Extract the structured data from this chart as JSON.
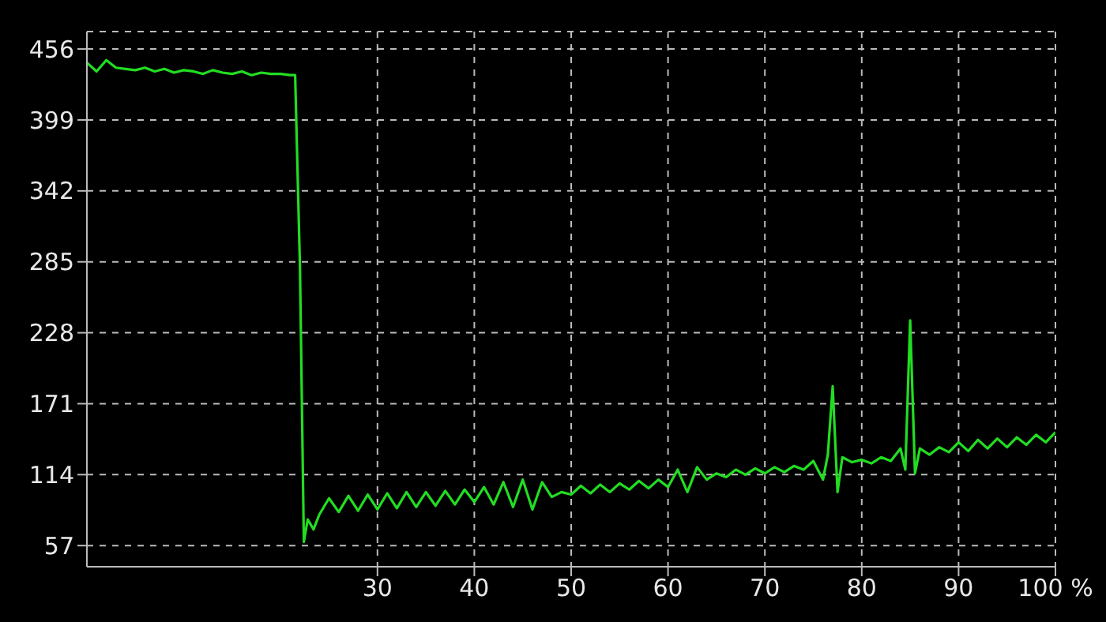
{
  "chart_data": {
    "type": "line",
    "x": [
      0,
      1,
      2,
      3,
      4,
      5,
      6,
      7,
      8,
      9,
      10,
      11,
      12,
      13,
      14,
      15,
      16,
      17,
      18,
      19,
      20,
      21,
      21.5,
      22,
      22.4,
      22.8,
      23.4,
      24,
      25,
      26,
      27,
      28,
      29,
      30,
      31,
      32,
      33,
      34,
      35,
      36,
      37,
      38,
      39,
      40,
      41,
      42,
      43,
      44,
      45,
      46,
      47,
      48,
      49,
      50,
      51,
      52,
      53,
      54,
      55,
      56,
      57,
      58,
      59,
      60,
      61,
      62,
      63,
      64,
      65,
      66,
      67,
      68,
      69,
      70,
      71,
      72,
      73,
      74,
      75,
      76,
      76.5,
      77,
      77.5,
      78,
      79,
      80,
      81,
      82,
      83,
      84,
      84.5,
      85,
      85.5,
      86,
      87,
      88,
      89,
      90,
      91,
      92,
      93,
      94,
      95,
      96,
      97,
      98,
      99,
      100
    ],
    "series": [
      {
        "color": "#22dd22",
        "values": [
          445,
          438,
          447,
          441,
          440,
          439,
          441,
          438,
          440,
          437,
          439,
          438,
          436,
          439,
          437,
          436,
          438,
          435,
          437,
          436,
          436,
          435,
          435,
          280,
          60,
          78,
          70,
          82,
          95,
          84,
          97,
          85,
          98,
          86,
          99,
          87,
          100,
          88,
          100,
          89,
          101,
          90,
          102,
          92,
          104,
          90,
          108,
          88,
          110,
          86,
          108,
          96,
          100,
          98,
          105,
          99,
          106,
          100,
          107,
          102,
          109,
          103,
          110,
          104,
          118,
          100,
          120,
          110,
          115,
          112,
          118,
          114,
          119,
          115,
          120,
          116,
          121,
          118,
          125,
          110,
          130,
          185,
          100,
          128,
          124,
          126,
          123,
          128,
          125,
          135,
          118,
          238,
          115,
          135,
          130,
          136,
          132,
          140,
          133,
          142,
          135,
          143,
          136,
          144,
          138,
          146,
          140,
          148
        ]
      }
    ],
    "xlim": [
      0,
      100
    ],
    "xticks": [
      30,
      40,
      50,
      60,
      70,
      80,
      90,
      {
        "value": 100,
        "label": "100 %"
      }
    ],
    "ylim": [
      40,
      470
    ],
    "yticks": [
      57,
      114,
      171,
      228,
      285,
      342,
      399,
      456
    ],
    "grid": true,
    "marker": "none",
    "line_style": "solid"
  }
}
